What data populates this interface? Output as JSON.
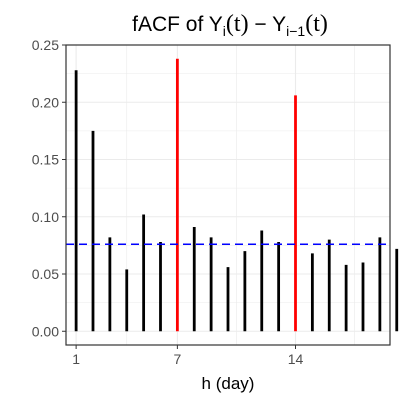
{
  "chart_data": {
    "type": "bar",
    "title": {
      "prefix": "fACF of Y",
      "sub1": "i",
      "t1": "(t)",
      "minus": " − Y",
      "sub2": "i−1",
      "t2": "(t)"
    },
    "xlabel": "h (day)",
    "ylabel": "",
    "xlim": [
      0.4,
      19.6
    ],
    "ylim": [
      -0.012,
      0.25
    ],
    "x_ticks": [
      1,
      7,
      14
    ],
    "y_ticks": [
      0.0,
      0.05,
      0.1,
      0.15,
      0.2,
      0.25
    ],
    "y_tick_labels": [
      "0.00",
      "0.05",
      "0.10",
      "0.15",
      "0.20",
      "0.25"
    ],
    "grid": true,
    "x": [
      1,
      2,
      3,
      4,
      5,
      6,
      7,
      8,
      9,
      10,
      11,
      12,
      13,
      14,
      15,
      16,
      17,
      18,
      19,
      20
    ],
    "values": [
      0.228,
      0.175,
      0.082,
      0.054,
      0.102,
      0.078,
      0.238,
      0.091,
      0.082,
      0.056,
      0.07,
      0.088,
      0.078,
      0.206,
      0.068,
      0.08,
      0.058,
      0.06,
      0.082,
      0.072
    ],
    "highlight_lags": [
      7,
      14
    ],
    "threshold": 0.076,
    "colors": {
      "bar": "#000000",
      "highlight": "#ff0000",
      "threshold": "#0000ff",
      "grid": "#ebebeb",
      "panel_border": "#333333"
    }
  }
}
